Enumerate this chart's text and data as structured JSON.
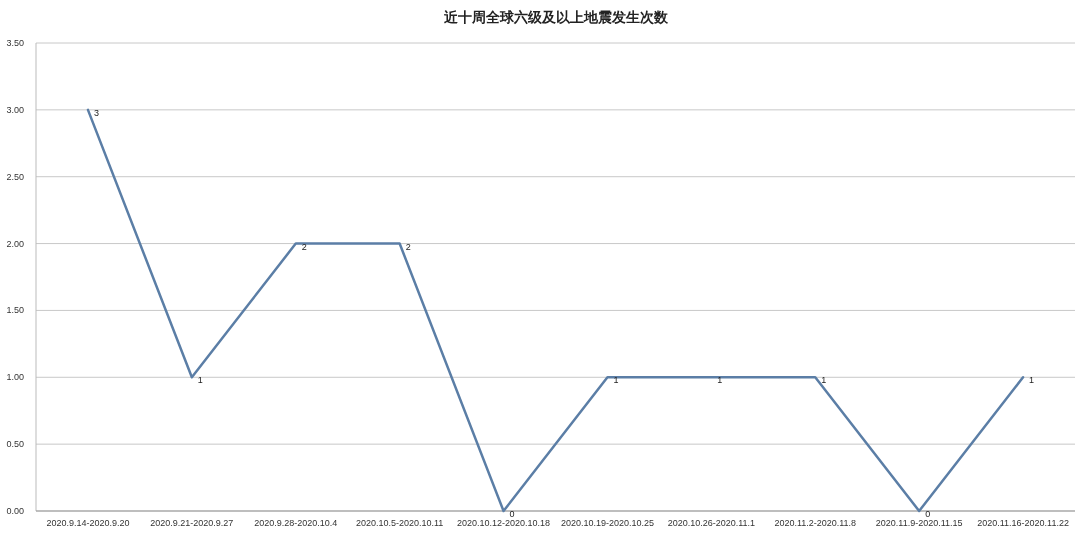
{
  "chart_data": {
    "type": "line",
    "title": "近十周全球六级及以上地震发生次数",
    "categories": [
      "2020.9.14-2020.9.20",
      "2020.9.21-2020.9.27",
      "2020.9.28-2020.10.4",
      "2020.10.5-2020.10.11",
      "2020.10.12-2020.10.18",
      "2020.10.19-2020.10.25",
      "2020.10.26-2020.11.1",
      "2020.11.2-2020.11.8",
      "2020.11.9-2020.11.15",
      "2020.11.16-2020.11.22"
    ],
    "values": [
      3,
      1,
      2,
      2,
      0,
      1,
      1,
      1,
      0,
      1
    ],
    "color": "#5b7ea6",
    "ylim": [
      0,
      3.5
    ],
    "yticks": [
      {
        "value": 0,
        "label": "0.00"
      },
      {
        "value": 0.5,
        "label": "0.50"
      },
      {
        "value": 1,
        "label": "1.00"
      },
      {
        "value": 1.5,
        "label": "1.50"
      },
      {
        "value": 2,
        "label": "2.00"
      },
      {
        "value": 2.5,
        "label": "2.50"
      },
      {
        "value": 3,
        "label": "3.00"
      },
      {
        "value": 3.5,
        "label": "3.50"
      }
    ],
    "grid": "y",
    "data_labels": true,
    "marker": "none",
    "line_style": "solid"
  }
}
